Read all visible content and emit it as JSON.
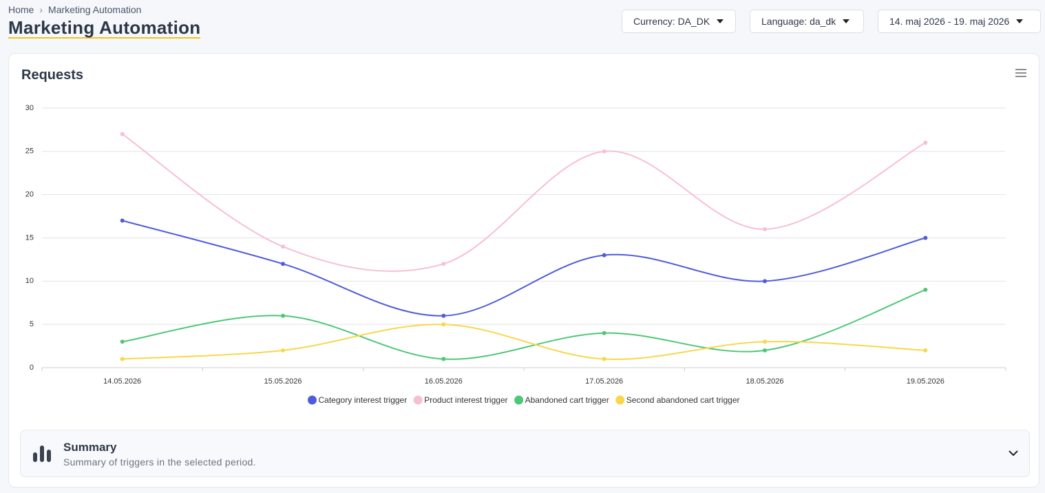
{
  "breadcrumb": [
    "Home",
    "Marketing Automation"
  ],
  "title": "Marketing Automation",
  "controls": [
    "Currency: DA_DK",
    "Language: da_dk",
    "14. maj 2026 - 19. maj 2026"
  ],
  "chart_data": {
    "type": "line",
    "title": "Requests",
    "categories": [
      "14.05.2026",
      "15.05.2026",
      "16.05.2026",
      "17.05.2026",
      "18.05.2026",
      "19.05.2026"
    ],
    "series": [
      {
        "name": "Category interest trigger",
        "color": "#4f5bdc",
        "values": [
          17,
          12,
          6,
          13,
          10,
          15
        ]
      },
      {
        "name": "Product interest trigger",
        "color": "#f7bfd3",
        "values": [
          27,
          14,
          12,
          25,
          16,
          26
        ]
      },
      {
        "name": "Abandoned cart trigger",
        "color": "#4cc876",
        "values": [
          3,
          6,
          1,
          4,
          2,
          9
        ]
      },
      {
        "name": "Second abandoned cart trigger",
        "color": "#f8d74a",
        "values": [
          1,
          2,
          5,
          1,
          3,
          2
        ]
      }
    ],
    "ylim": [
      0,
      30
    ],
    "yticks": [
      0,
      5,
      10,
      15,
      20,
      25,
      30
    ],
    "grid": true
  },
  "summary": {
    "title": "Summary",
    "subtitle": "Summary of triggers in the selected period."
  }
}
